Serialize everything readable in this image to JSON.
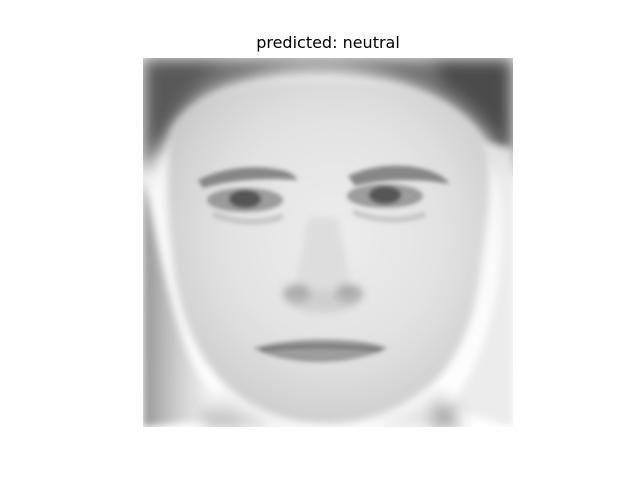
{
  "title": "predicted: neutral",
  "image": {
    "subject": "grayscale face photo",
    "palette": {
      "background": "#ffffff",
      "skin_light": "#e6e6e6",
      "skin_mid": "#cfcfcf",
      "shadow": "#8a8a8a",
      "dark": "#3f3f3f",
      "hair": "#5a5a5a"
    }
  }
}
